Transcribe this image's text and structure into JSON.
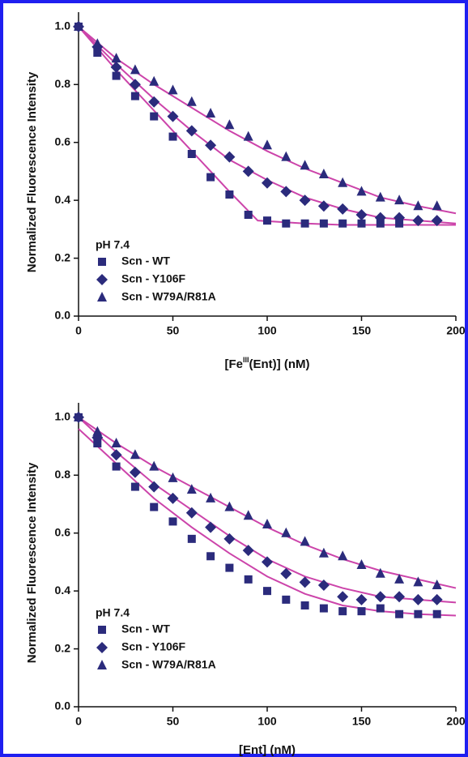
{
  "chart_data": [
    {
      "type": "scatter",
      "xlabel": [
        "[Fe",
        "III",
        "(Ent)] (nM)"
      ],
      "ylabel": "Normalized Fluorescence Intensity",
      "legend_title": "pH 7.4",
      "xlim": [
        0,
        200
      ],
      "ylim": [
        0,
        1.05
      ],
      "xticks": [
        0,
        50,
        100,
        150,
        200
      ],
      "yticks": [
        {
          "value": 0,
          "label": "0.0"
        },
        {
          "value": 0.2,
          "label": "0.2"
        },
        {
          "value": 0.4,
          "label": "0.4"
        },
        {
          "value": 0.6,
          "label": "0.6"
        },
        {
          "value": 0.8,
          "label": "0.8"
        },
        {
          "value": 1,
          "label": "1.0"
        }
      ],
      "series": [
        {
          "name": "Scn - WT",
          "color": "#2b2b7c",
          "marker": "square",
          "x": [
            0,
            10,
            20,
            30,
            40,
            50,
            60,
            70,
            80,
            90,
            100,
            110,
            120,
            130,
            140,
            150,
            160,
            170
          ],
          "values": [
            1.0,
            0.91,
            0.83,
            0.76,
            0.69,
            0.62,
            0.56,
            0.48,
            0.42,
            0.35,
            0.33,
            0.32,
            0.32,
            0.32,
            0.32,
            0.32,
            0.32,
            0.32
          ]
        },
        {
          "name": "Scn - Y106F",
          "color": "#2b2b7c",
          "marker": "diamond",
          "x": [
            0,
            10,
            20,
            30,
            40,
            50,
            60,
            70,
            80,
            90,
            100,
            110,
            120,
            130,
            140,
            150,
            160,
            170,
            180,
            190
          ],
          "values": [
            1.0,
            0.93,
            0.86,
            0.8,
            0.74,
            0.69,
            0.64,
            0.59,
            0.55,
            0.5,
            0.46,
            0.43,
            0.4,
            0.38,
            0.37,
            0.35,
            0.34,
            0.34,
            0.33,
            0.33
          ]
        },
        {
          "name": "Scn - W79A/R81A",
          "color": "#2b2b7c",
          "marker": "triangle",
          "x": [
            0,
            10,
            20,
            30,
            40,
            50,
            60,
            70,
            80,
            90,
            100,
            110,
            120,
            130,
            140,
            150,
            160,
            170,
            180,
            190
          ],
          "values": [
            1.0,
            0.94,
            0.89,
            0.85,
            0.81,
            0.78,
            0.74,
            0.7,
            0.66,
            0.62,
            0.59,
            0.55,
            0.52,
            0.49,
            0.46,
            0.43,
            0.41,
            0.4,
            0.38,
            0.38
          ]
        }
      ],
      "fits": [
        {
          "color": "#cc44aa",
          "x": [
            0,
            20,
            40,
            60,
            80,
            95,
            120,
            140,
            160,
            180,
            200
          ],
          "values": [
            1.0,
            0.85,
            0.71,
            0.57,
            0.43,
            0.33,
            0.32,
            0.315,
            0.315,
            0.315,
            0.315
          ]
        },
        {
          "color": "#cc44aa",
          "x": [
            0,
            20,
            40,
            60,
            80,
            100,
            120,
            140,
            160,
            180,
            200
          ],
          "values": [
            1.0,
            0.87,
            0.75,
            0.64,
            0.54,
            0.47,
            0.41,
            0.37,
            0.34,
            0.33,
            0.32
          ]
        },
        {
          "color": "#cc44aa",
          "x": [
            0,
            20,
            40,
            60,
            80,
            100,
            120,
            140,
            160,
            180,
            200
          ],
          "values": [
            1.0,
            0.89,
            0.8,
            0.72,
            0.64,
            0.57,
            0.51,
            0.46,
            0.41,
            0.38,
            0.355
          ]
        }
      ]
    },
    {
      "type": "scatter",
      "xlabel": "[Ent] (nM)",
      "ylabel": "Normalized Fluorescence Intensity",
      "legend_title": "pH 7.4",
      "xlim": [
        0,
        200
      ],
      "ylim": [
        0,
        1.05
      ],
      "xticks": [
        0,
        50,
        100,
        150,
        200
      ],
      "yticks": [
        {
          "value": 0,
          "label": "0.0"
        },
        {
          "value": 0.2,
          "label": "0.2"
        },
        {
          "value": 0.4,
          "label": "0.4"
        },
        {
          "value": 0.6,
          "label": "0.6"
        },
        {
          "value": 0.8,
          "label": "0.8"
        },
        {
          "value": 1,
          "label": "1.0"
        }
      ],
      "series": [
        {
          "name": "Scn - WT",
          "color": "#2b2b7c",
          "marker": "square",
          "x": [
            0,
            10,
            20,
            30,
            40,
            50,
            60,
            70,
            80,
            90,
            100,
            110,
            120,
            130,
            140,
            150,
            160,
            170,
            180,
            190
          ],
          "values": [
            1.0,
            0.91,
            0.83,
            0.76,
            0.69,
            0.64,
            0.58,
            0.52,
            0.48,
            0.44,
            0.4,
            0.37,
            0.35,
            0.34,
            0.33,
            0.33,
            0.34,
            0.32,
            0.32,
            0.32
          ]
        },
        {
          "name": "Scn - Y106F",
          "color": "#2b2b7c",
          "marker": "diamond",
          "x": [
            0,
            10,
            20,
            30,
            40,
            50,
            60,
            70,
            80,
            90,
            100,
            110,
            120,
            130,
            140,
            150,
            160,
            170,
            180,
            190
          ],
          "values": [
            1.0,
            0.93,
            0.87,
            0.81,
            0.76,
            0.72,
            0.67,
            0.62,
            0.58,
            0.54,
            0.5,
            0.46,
            0.43,
            0.42,
            0.38,
            0.37,
            0.38,
            0.38,
            0.37,
            0.37
          ]
        },
        {
          "name": "Scn - W79A/R81A",
          "color": "#2b2b7c",
          "marker": "triangle",
          "x": [
            0,
            10,
            20,
            30,
            40,
            50,
            60,
            70,
            80,
            90,
            100,
            110,
            120,
            130,
            140,
            150,
            160,
            170,
            180,
            190
          ],
          "values": [
            1.0,
            0.95,
            0.91,
            0.87,
            0.83,
            0.79,
            0.75,
            0.72,
            0.69,
            0.66,
            0.63,
            0.6,
            0.57,
            0.53,
            0.52,
            0.49,
            0.46,
            0.44,
            0.43,
            0.42
          ]
        }
      ],
      "fits": [
        {
          "color": "#cc44aa",
          "x": [
            0,
            20,
            40,
            60,
            80,
            100,
            120,
            140,
            160,
            180,
            200
          ],
          "values": [
            0.96,
            0.84,
            0.72,
            0.62,
            0.53,
            0.45,
            0.39,
            0.35,
            0.33,
            0.32,
            0.315
          ]
        },
        {
          "color": "#cc44aa",
          "x": [
            0,
            20,
            40,
            60,
            80,
            100,
            120,
            140,
            160,
            180,
            200
          ],
          "values": [
            1.0,
            0.88,
            0.77,
            0.68,
            0.59,
            0.51,
            0.45,
            0.41,
            0.38,
            0.37,
            0.36
          ]
        },
        {
          "color": "#cc44aa",
          "x": [
            0,
            20,
            40,
            60,
            80,
            100,
            120,
            140,
            160,
            180,
            200
          ],
          "values": [
            1.0,
            0.91,
            0.83,
            0.76,
            0.69,
            0.62,
            0.56,
            0.51,
            0.47,
            0.44,
            0.41
          ]
        }
      ]
    }
  ]
}
